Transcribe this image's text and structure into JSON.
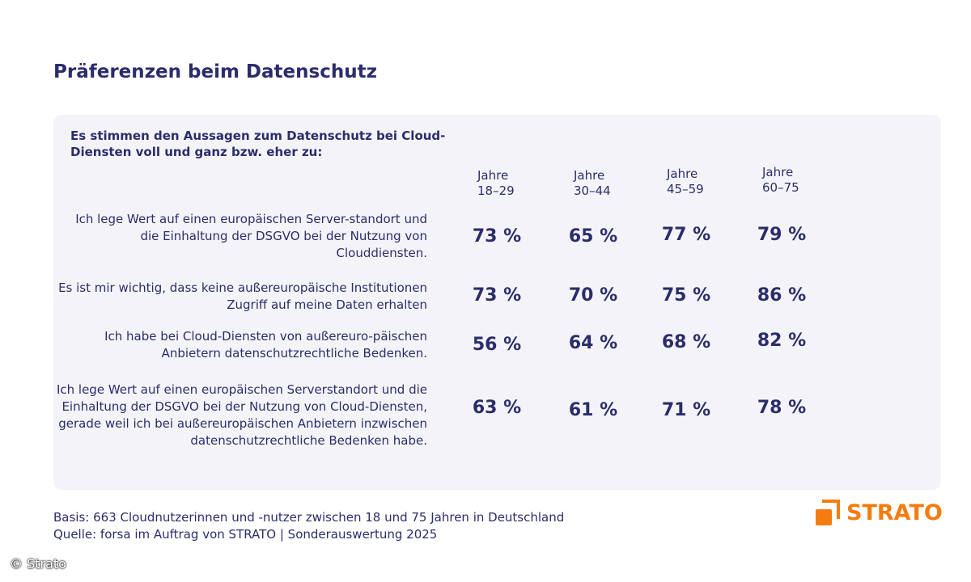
{
  "title": "Präferenzen beim Datenschutz",
  "chart_data": {
    "type": "table",
    "subtitle": "Es stimmen den Aussagen zum Datenschutz bei Cloud-Diensten voll und ganz bzw. eher zu:",
    "columns": [
      {
        "line1": "Jahre",
        "line2": "18–29"
      },
      {
        "line1": "Jahre",
        "line2": "30–44"
      },
      {
        "line1": "Jahre",
        "line2": "45–59"
      },
      {
        "line1": "Jahre",
        "line2": "60–75"
      }
    ],
    "rows": [
      {
        "statement": "Ich lege Wert auf einen europäischen Server-standort und die Einhaltung der DSGVO bei der Nutzung von Clouddiensten.",
        "values": [
          "73 %",
          "65 %",
          "77 %",
          "79 %"
        ]
      },
      {
        "statement": "Es ist mir wichtig, dass keine außereuropäische Institutionen Zugriff auf meine Daten erhalten",
        "values": [
          "73 %",
          "70 %",
          "75 %",
          "86 %"
        ]
      },
      {
        "statement": "Ich habe bei Cloud-Diensten von außereuro-päischen Anbietern datenschutzrechtliche Bedenken.",
        "values": [
          "56 %",
          "64 %",
          "68 %",
          "82 %"
        ]
      },
      {
        "statement": "Ich lege Wert auf einen europäischen Serverstandort und die Einhaltung der DSGVO bei der Nutzung von Cloud-Diensten, gerade weil ich bei außereuropäischen Anbietern inzwischen datenschutzrechtliche Bedenken habe.",
        "values": [
          "63 %",
          "61 %",
          "71 %",
          "78 %"
        ]
      }
    ]
  },
  "footer": {
    "basis": "Basis: 663 Cloudnutzerinnen und -nutzer zwischen 18 und 75 Jahren in Deutschland",
    "source": "Quelle: forsa im Auftrag von STRATO | Sonderauswertung 2025"
  },
  "logo": {
    "text": "STRATO",
    "color": "#f47c10"
  },
  "copyright": "© Strato",
  "colors": {
    "text": "#2b2d6b",
    "card": "#f4f4f8",
    "accent": "#f47c10"
  }
}
